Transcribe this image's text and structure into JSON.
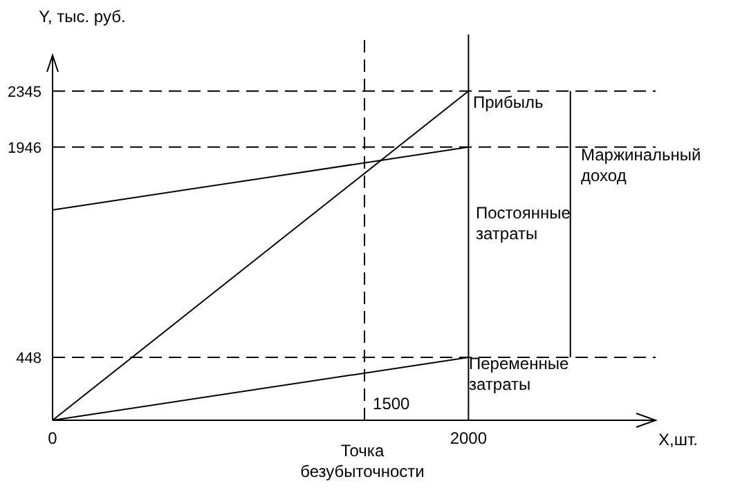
{
  "chart_data": {
    "type": "line",
    "xlabel": "Х,шт.",
    "ylabel": "Y, тыс. руб.",
    "xlim": [
      0,
      2900
    ],
    "ylim": [
      0,
      2600
    ],
    "xticks": [
      0,
      2000
    ],
    "yticks": [
      448,
      1946,
      2345
    ],
    "grid": false,
    "marker": "none",
    "line_style": "solid",
    "series": [
      {
        "color": "#000000",
        "x": [
          0,
          2000
        ],
        "values": [
          0,
          2345
        ]
      },
      {
        "color": "#000000",
        "x": [
          0,
          2000
        ],
        "values": [
          1498,
          1946
        ]
      },
      {
        "color": "#000000",
        "x": [
          0,
          2000
        ],
        "values": [
          0,
          448
        ]
      },
      {
        "color": "#000000",
        "x": [
          2490,
          2490
        ],
        "values": [
          448,
          2345
        ]
      }
    ],
    "ref_lines": [
      {
        "axis": "y",
        "value": 2345,
        "line_style": "dashed",
        "color": "#000000"
      },
      {
        "axis": "y",
        "value": 1946,
        "line_style": "dashed",
        "color": "#000000"
      },
      {
        "axis": "y",
        "value": 448,
        "line_style": "dashed",
        "color": "#000000"
      },
      {
        "axis": "x",
        "value": 1500,
        "label": "1500",
        "line_style": "dashed",
        "color": "#000000"
      },
      {
        "axis": "x",
        "value": 2000,
        "line_style": "solid",
        "color": "#000000"
      }
    ],
    "annotations": [
      "Прибыль",
      "Постоянные\nзатраты",
      "Переменные\nзатраты",
      "Маржинальный\nдоход",
      "Точка\nбезубыточности"
    ]
  }
}
